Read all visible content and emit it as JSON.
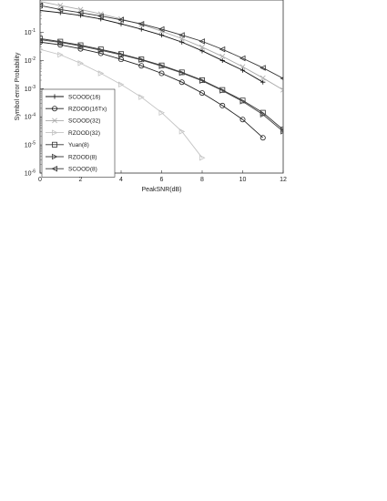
{
  "chart_data": {
    "type": "line",
    "xlabel": "PeakSNR(dB)",
    "ylabel": "Symbol error Probability",
    "xlim": [
      0,
      12
    ],
    "ylim_exponent": [
      -6,
      0
    ],
    "y_scale": "log",
    "grid": false,
    "legend_position": "bottom-left",
    "x_ticks": [
      "0",
      "2",
      "4",
      "6",
      "8",
      "10",
      "12"
    ],
    "y_ticks": [
      {
        "base": "10",
        "exp": "-1"
      },
      {
        "base": "10",
        "exp": "-2"
      },
      {
        "base": "10",
        "exp": "-3"
      },
      {
        "base": "10",
        "exp": "-4"
      },
      {
        "base": "10",
        "exp": "-5"
      },
      {
        "base": "10",
        "exp": "-6"
      }
    ],
    "series": [
      {
        "name": "SCOOD(16)",
        "color": "#111111",
        "marker": "plus",
        "x": [
          0,
          1,
          2,
          3,
          4,
          5,
          6,
          7,
          8,
          9,
          10,
          11
        ],
        "y": [
          0.6,
          0.5,
          0.4,
          0.3,
          0.2,
          0.13,
          0.08,
          0.045,
          0.022,
          0.01,
          0.0045,
          0.0017
        ]
      },
      {
        "name": "RZOOD(16Tx)",
        "color": "#222222",
        "marker": "circle",
        "x": [
          0,
          1,
          2,
          3,
          4,
          5,
          6,
          7,
          8,
          9,
          10,
          11
        ],
        "y": [
          0.045,
          0.036,
          0.026,
          0.018,
          0.011,
          0.0065,
          0.0035,
          0.0017,
          0.0007,
          0.00025,
          8e-05,
          1.8e-05
        ]
      },
      {
        "name": "SCOOD(32)",
        "color": "#a9a9a9",
        "marker": "x",
        "x": [
          0,
          1,
          2,
          3,
          4,
          5,
          6,
          7,
          8,
          9,
          10,
          11,
          12
        ],
        "y": [
          1.25,
          0.9,
          0.65,
          0.45,
          0.3,
          0.19,
          0.11,
          0.06,
          0.03,
          0.014,
          0.006,
          0.0024,
          0.0009
        ]
      },
      {
        "name": "RZOOD(32)",
        "color": "#c4c4c4",
        "marker": "tri-right",
        "x": [
          0,
          1,
          2,
          3,
          4,
          5,
          6,
          7,
          8
        ],
        "y": [
          0.025,
          0.016,
          0.008,
          0.0035,
          0.0014,
          0.0005,
          0.00014,
          3e-05,
          3.5e-06
        ]
      },
      {
        "name": "Yuan(8)",
        "color": "#333333",
        "marker": "square",
        "x": [
          0,
          1,
          2,
          3,
          4,
          5,
          6,
          7,
          8,
          9,
          10,
          11,
          12
        ],
        "y": [
          0.06,
          0.047,
          0.035,
          0.025,
          0.017,
          0.011,
          0.0067,
          0.0038,
          0.002,
          0.0009,
          0.00038,
          0.00014,
          3.5e-05
        ]
      },
      {
        "name": "RZOOD(8)",
        "color": "#444444",
        "marker": "tri-right",
        "x": [
          0,
          1,
          2,
          3,
          4,
          5,
          6,
          7,
          8,
          9,
          10,
          11,
          12
        ],
        "y": [
          0.055,
          0.044,
          0.033,
          0.023,
          0.016,
          0.0105,
          0.0063,
          0.0036,
          0.0019,
          0.00085,
          0.00035,
          0.00012,
          3e-05
        ]
      },
      {
        "name": "SCOOD(8)",
        "color": "#333333",
        "marker": "tri-left",
        "x": [
          0,
          1,
          2,
          3,
          4,
          5,
          6,
          7,
          8,
          9,
          10,
          11,
          12
        ],
        "y": [
          0.9,
          0.65,
          0.5,
          0.38,
          0.28,
          0.2,
          0.13,
          0.08,
          0.048,
          0.025,
          0.012,
          0.0055,
          0.0023
        ]
      }
    ]
  }
}
